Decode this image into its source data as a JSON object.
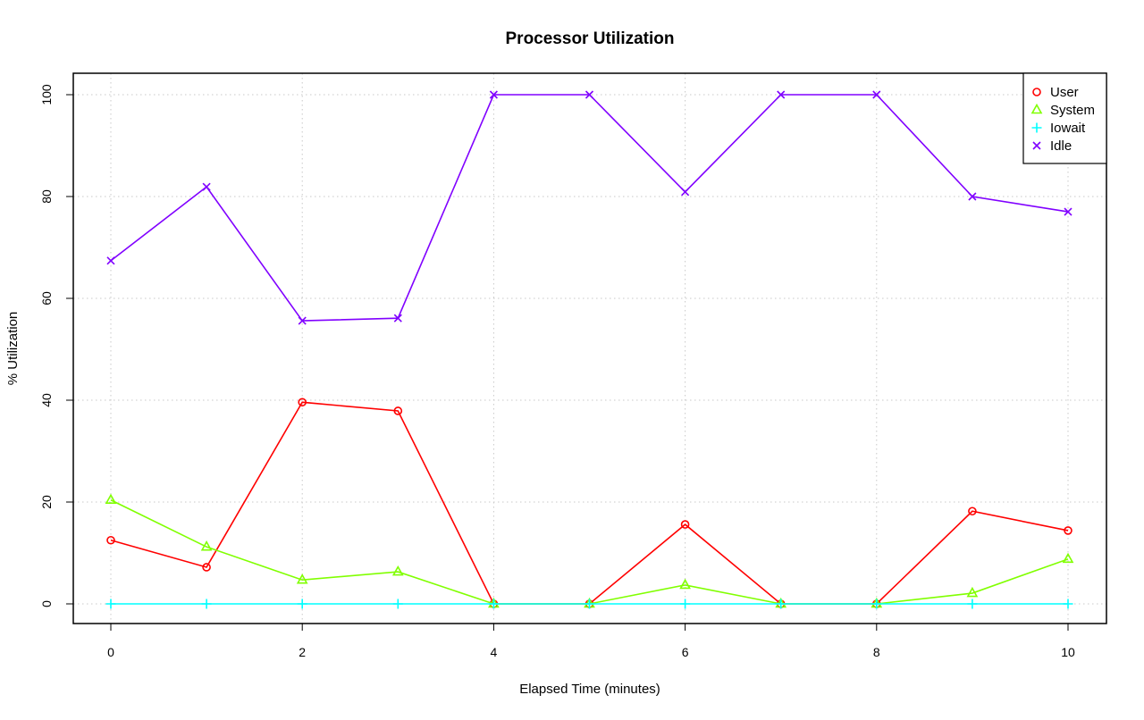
{
  "chart_data": {
    "type": "line",
    "title": "Processor Utilization",
    "xlabel": "Elapsed Time (minutes)",
    "ylabel": "% Utilization",
    "xlim": [
      0,
      10
    ],
    "ylim": [
      0,
      100
    ],
    "xticks": [
      0,
      2,
      4,
      6,
      8,
      10
    ],
    "yticks": [
      0,
      20,
      40,
      60,
      80,
      100
    ],
    "grid": true,
    "legend_position": "top-right",
    "x": [
      0,
      1,
      2,
      3,
      4,
      5,
      6,
      7,
      8,
      9,
      10
    ],
    "series": [
      {
        "name": "User",
        "color": "#ff0000",
        "marker": "circle",
        "values": [
          12.5,
          7.2,
          39.6,
          37.9,
          0,
          0,
          15.6,
          0,
          0,
          18.2,
          14.4
        ]
      },
      {
        "name": "System",
        "color": "#80ff00",
        "marker": "triangle",
        "values": [
          20.4,
          11.2,
          4.7,
          6.3,
          0,
          0,
          3.7,
          0,
          0,
          2.1,
          8.8
        ]
      },
      {
        "name": "Iowait",
        "color": "#00ffff",
        "marker": "plus",
        "values": [
          0,
          0,
          0,
          0,
          0,
          0,
          0,
          0,
          0,
          0,
          0
        ]
      },
      {
        "name": "Idle",
        "color": "#8000ff",
        "marker": "cross",
        "values": [
          67.4,
          81.9,
          55.6,
          56.1,
          100,
          100,
          80.9,
          100,
          100,
          80.0,
          77.0
        ]
      }
    ]
  }
}
